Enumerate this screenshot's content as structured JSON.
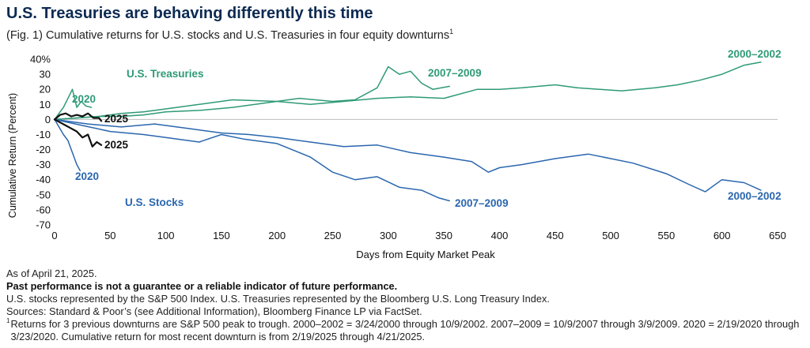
{
  "title": "U.S. Treasuries are behaving differently this time",
  "subtitle": "(Fig. 1) Cumulative returns for U.S. stocks and U.S. Treasuries in four equity downturns",
  "subtitle_footnote_mark": "1",
  "colors": {
    "treasuries": "#2e9a77",
    "stocks": "#2a66ae",
    "current": "#111111",
    "title": "#0c2a52"
  },
  "chart_data": {
    "type": "line",
    "xlabel": "Days from Equity Market Peak",
    "ylabel": "Cumulative Return (Percent)",
    "xlim": [
      0,
      650
    ],
    "ylim": [
      -70,
      40
    ],
    "xticks": [
      "0",
      "50",
      "100",
      "150",
      "200",
      "250",
      "300",
      "350",
      "400",
      "450",
      "500",
      "550",
      "600",
      "650"
    ],
    "yticks": [
      "40%",
      "30",
      "20",
      "10",
      "0",
      "-10",
      "-20",
      "-30",
      "-40",
      "-50",
      "-60",
      "-70"
    ],
    "group_labels": {
      "treasuries": "U.S. Treasuries",
      "stocks": "U.S. Stocks"
    },
    "series": [
      {
        "name": "2000–2002",
        "group": "treasuries",
        "x": [
          0,
          20,
          40,
          60,
          80,
          100,
          130,
          160,
          200,
          230,
          260,
          290,
          320,
          350,
          380,
          400,
          420,
          450,
          470,
          490,
          510,
          540,
          560,
          580,
          600,
          620,
          635
        ],
        "y": [
          0,
          1,
          2,
          4,
          5,
          7,
          10,
          13,
          12,
          10,
          12,
          14,
          15,
          14,
          20,
          20,
          21,
          23,
          21,
          20,
          19,
          21,
          23,
          26,
          30,
          36,
          38
        ]
      },
      {
        "name": "2007–2009",
        "group": "treasuries",
        "x": [
          0,
          20,
          40,
          60,
          80,
          100,
          130,
          160,
          190,
          220,
          250,
          270,
          290,
          300,
          310,
          320,
          330,
          340,
          355
        ],
        "y": [
          0,
          1,
          2,
          2,
          3,
          5,
          6,
          8,
          11,
          14,
          12,
          13,
          21,
          35,
          30,
          32,
          24,
          20,
          22
        ]
      },
      {
        "name": "2020",
        "group": "treasuries",
        "x": [
          0,
          4,
          8,
          12,
          16,
          20,
          24,
          28,
          33
        ],
        "y": [
          0,
          4,
          8,
          14,
          20,
          8,
          12,
          9,
          8
        ]
      },
      {
        "name": "2025",
        "group": "treasuries",
        "current": true,
        "x": [
          0,
          5,
          10,
          15,
          20,
          25,
          30,
          35,
          40,
          42
        ],
        "y": [
          0,
          3,
          4,
          2,
          3,
          2,
          4,
          1,
          1,
          -1
        ]
      },
      {
        "name": "2000–2002",
        "group": "stocks",
        "x": [
          0,
          30,
          60,
          90,
          120,
          150,
          175,
          200,
          230,
          260,
          290,
          320,
          350,
          375,
          390,
          400,
          420,
          450,
          480,
          500,
          520,
          550,
          570,
          585,
          600,
          620,
          635
        ],
        "y": [
          0,
          -3,
          -5,
          -3,
          -6,
          -9,
          -10,
          -12,
          -15,
          -18,
          -17,
          -22,
          -25,
          -28,
          -35,
          -32,
          -30,
          -26,
          -23,
          -26,
          -29,
          -36,
          -43,
          -48,
          -40,
          -42,
          -47
        ]
      },
      {
        "name": "2007–2009",
        "group": "stocks",
        "x": [
          0,
          25,
          50,
          80,
          100,
          130,
          150,
          170,
          200,
          230,
          250,
          270,
          290,
          310,
          330,
          345,
          355
        ],
        "y": [
          0,
          -4,
          -8,
          -10,
          -12,
          -15,
          -10,
          -13,
          -16,
          -25,
          -35,
          -40,
          -38,
          -45,
          -47,
          -52,
          -54
        ]
      },
      {
        "name": "2020",
        "group": "stocks",
        "x": [
          0,
          4,
          8,
          12,
          16,
          20,
          23
        ],
        "y": [
          0,
          -5,
          -10,
          -14,
          -22,
          -30,
          -34
        ]
      },
      {
        "name": "2025",
        "group": "stocks",
        "current": true,
        "x": [
          0,
          5,
          10,
          15,
          20,
          25,
          30,
          34,
          38,
          42
        ],
        "y": [
          0,
          -2,
          -4,
          -6,
          -8,
          -12,
          -10,
          -18,
          -15,
          -17
        ]
      }
    ],
    "annotations": [
      {
        "text": "2000–2002",
        "group": "treasuries"
      },
      {
        "text": "2007–2009",
        "group": "treasuries"
      },
      {
        "text": "2020",
        "group": "treasuries"
      },
      {
        "text": "2025",
        "group": "treasuries",
        "current": true
      },
      {
        "text": "2025",
        "group": "stocks",
        "current": true
      },
      {
        "text": "2020",
        "group": "stocks"
      },
      {
        "text": "2007–2009",
        "group": "stocks"
      },
      {
        "text": "2000–2002",
        "group": "stocks"
      }
    ],
    "grid": false,
    "zero_line": true
  },
  "notes": {
    "as_of": "As of April 21, 2025.",
    "disclaimer": "Past performance is not a guarantee or a reliable indicator of future performance.",
    "represented": "U.S. stocks represented by the S&P 500 Index. U.S. Treasuries represented by the Bloomberg U.S. Long Treasury Index.",
    "sources": "Sources: Standard & Poor’s (see Additional Information), Bloomberg Finance LP via FactSet.",
    "footnote_mark": "1",
    "footnote": "Returns for 3 previous downturns are S&P 500 peak to trough. 2000–2002 = 3/24/2000 through 10/9/2002. 2007–2009 = 10/9/2007 through 3/9/2009. 2020 = 2/19/2020 through 3/23/2020. Cumulative return for most recent downturn is from 2/19/2025 through 4/21/2025."
  }
}
